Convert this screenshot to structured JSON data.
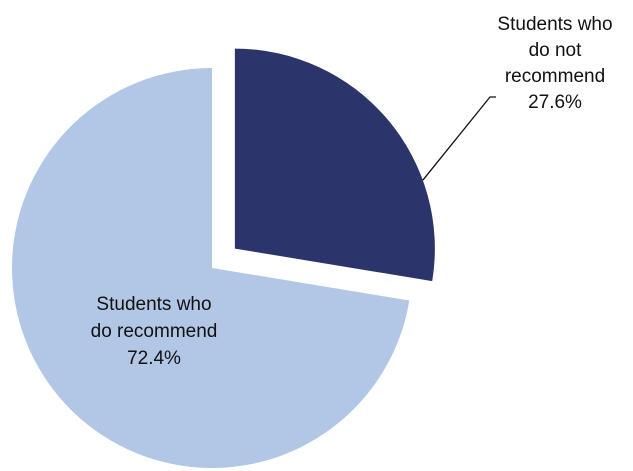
{
  "chart_data": {
    "type": "pie",
    "title": "",
    "slices": [
      {
        "label_lines": [
          "Students who",
          "do not",
          "recommend"
        ],
        "value": 27.6,
        "value_label": "27.6%",
        "color": "#2b346b",
        "exploded": true
      },
      {
        "label_lines": [
          "Students who",
          "do recommend"
        ],
        "value": 72.4,
        "value_label": "72.4%",
        "color": "#b2c6e6",
        "exploded": false
      }
    ],
    "legend": "none"
  }
}
